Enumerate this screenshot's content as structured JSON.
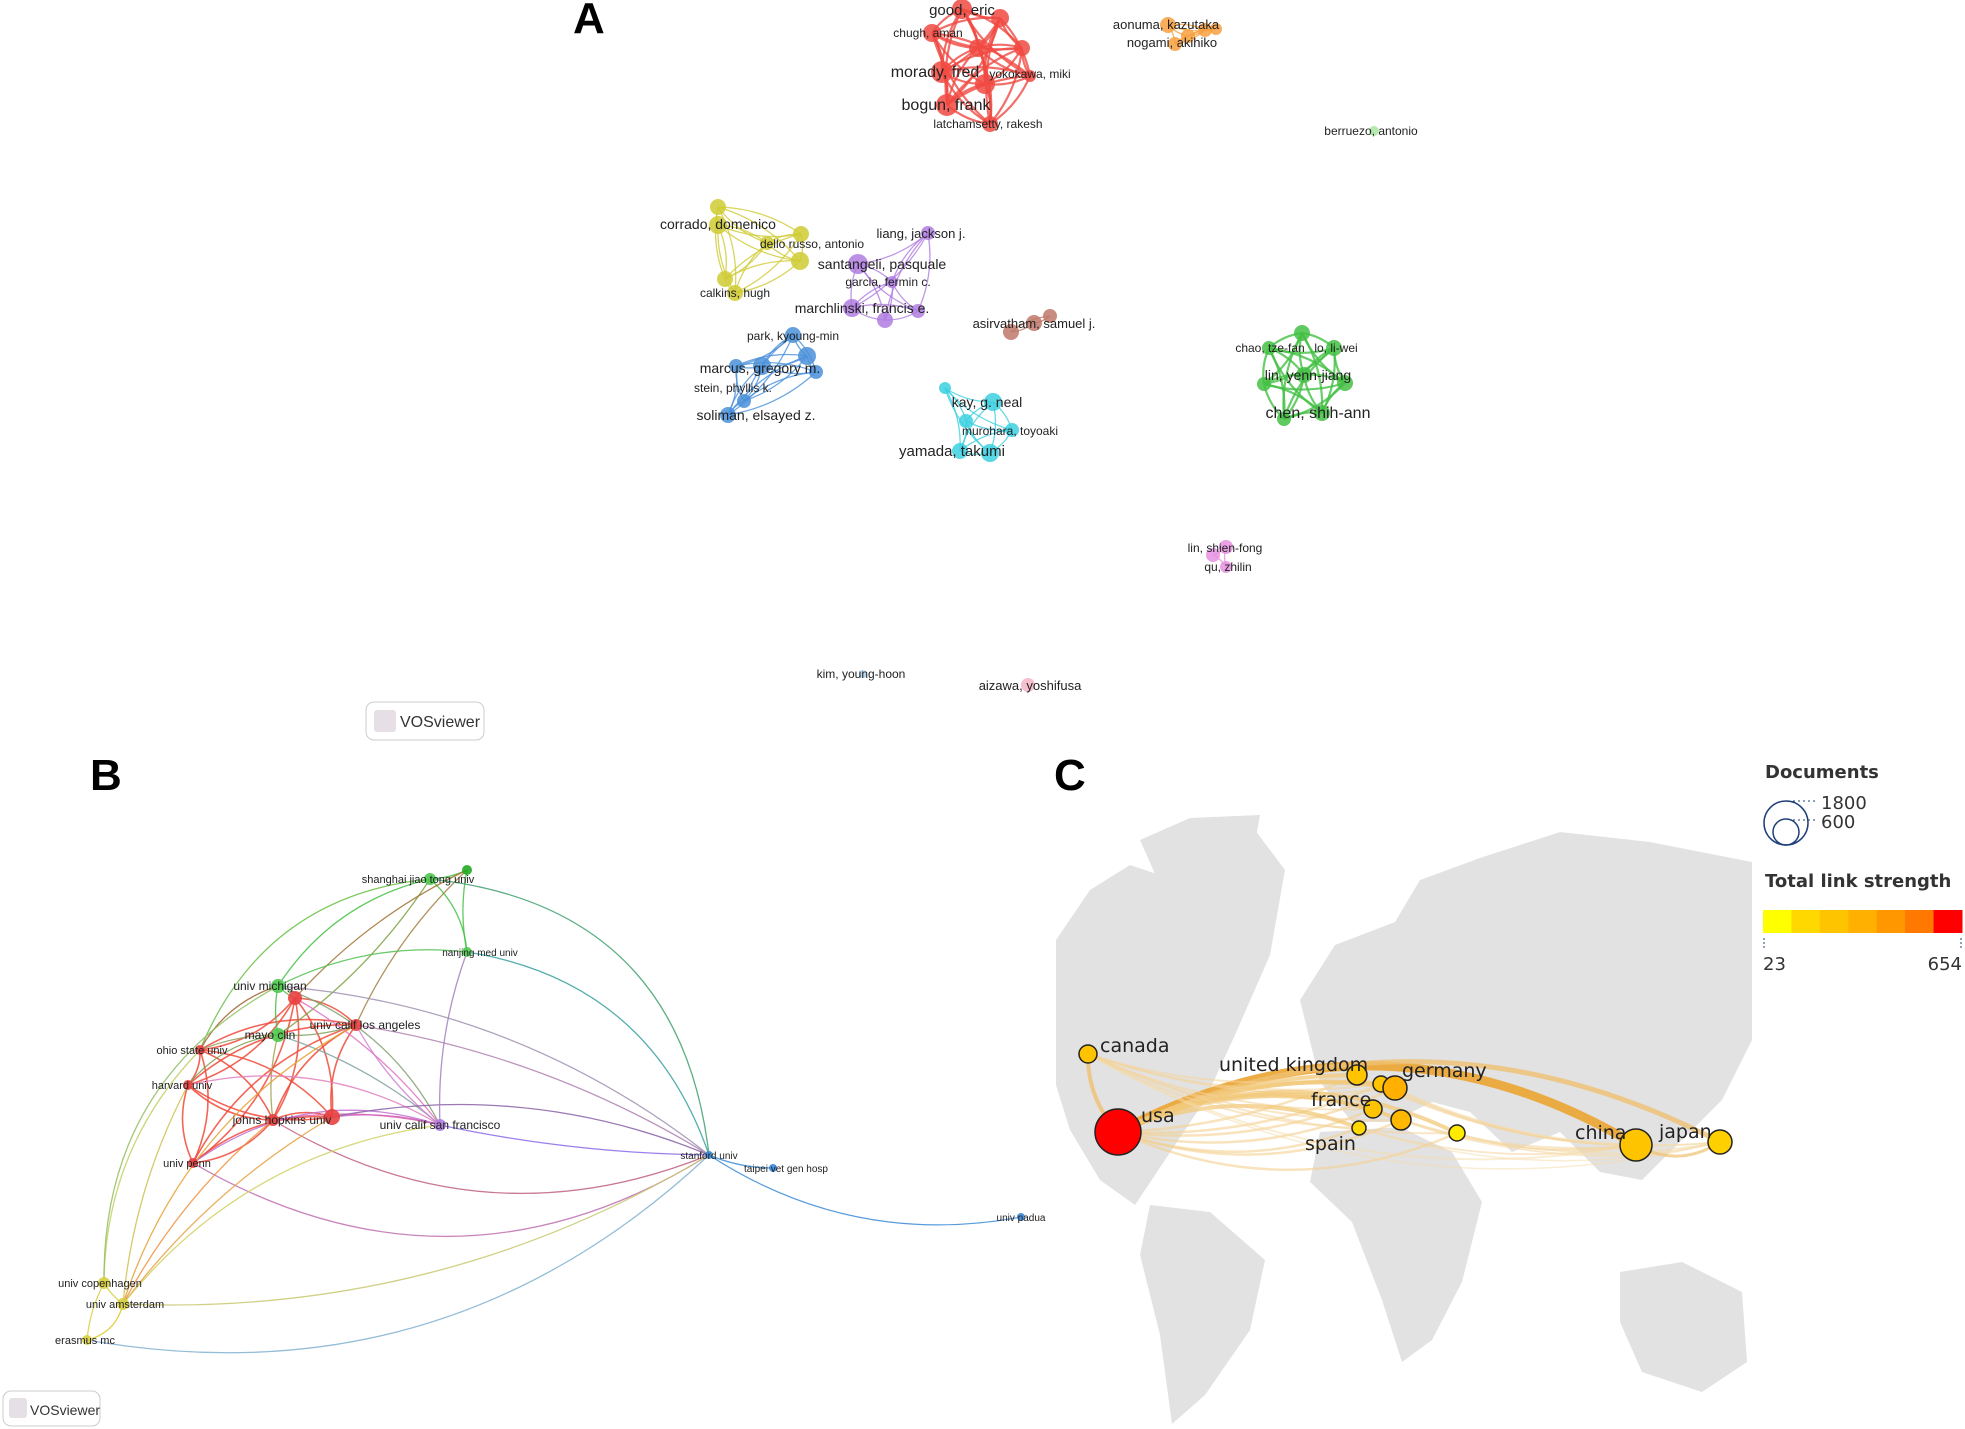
{
  "panels": {
    "a": "A",
    "b": "B",
    "c": "C"
  },
  "watermark": "VOSviewer",
  "authors": {
    "good_eric": "good, eric",
    "chugh_aman": "chugh, aman",
    "morady_fred": "morady, fred",
    "yokokawa_miki": "yokokawa, miki",
    "bogun_frank": "bogun, frank",
    "latchamsetty_rakesh": "latchamsetty, rakesh",
    "aonuma_kazutaka": "aonuma, kazutaka",
    "nogami_akihiko": "nogami, akihiko",
    "berruezo_antonio": "berruezo, antonio",
    "corrado_domenico": "corrado, domenico",
    "dello_russo_antonio": "dello russo, antonio",
    "calkins_hugh": "calkins, hugh",
    "liang_jackson": "liang, jackson j.",
    "santangeli_pasquale": "santangeli, pasquale",
    "garcia_fermin": "garcia, fermin c.",
    "marchlinski_francis": "marchlinski, francis e.",
    "park_kyoung_min": "park, kyoung-min",
    "marcus_gregory": "marcus, gregory m.",
    "stein_phyllis": "stein, phyllis k.",
    "soliman_elsayed": "soliman, elsayed z.",
    "asirvatham_samuel": "asirvatham, samuel j.",
    "kay_neal": "kay, g. neal",
    "murohara_toyoaki": "murohara, toyoaki",
    "yamada_takumi": "yamada, takumi",
    "chao_tze_fan": "chao, tze-fan",
    "lo_li_wei": "lo, li-wei",
    "lin_yenn_jiang": "lin, yenn-jiang",
    "chen_shih_ann": "chen, shih-ann",
    "lin_shien_fong": "lin, shien-fong",
    "qu_zhilin": "qu, zhilin",
    "kim_young_hoon": "kim, young-hoon",
    "aizawa_yoshifusa": "aizawa, yoshifusa"
  },
  "institutions": {
    "shanghai_jiao_tong": "shanghai jiao tong univ",
    "nanjing_med": "nanjing med univ",
    "univ_michigan": "univ michigan",
    "mayo_clin": "mayo clin",
    "ucla": "univ calif los angeles",
    "ohio_state": "ohio state univ",
    "harvard": "harvard univ",
    "johns_hopkins": "johns hopkins univ",
    "ucsf": "univ calif san francisco",
    "univ_penn": "univ penn",
    "stanford": "stanford univ",
    "taipei_vet_gen": "taipei vet gen hosp",
    "univ_padua": "univ padua",
    "univ_copenhagen": "univ copenhagen",
    "univ_amsterdam": "univ amsterdam",
    "erasmus_mc": "erasmus mc"
  },
  "countries": {
    "canada": "canada",
    "usa": "usa",
    "united_kingdom": "united kingdom",
    "germany": "germany",
    "france": "france",
    "spain": "spain",
    "china": "china",
    "japan": "japan"
  },
  "legend": {
    "documents_title": "Documents",
    "size_large": "1800",
    "size_small": "600",
    "strength_title": "Total link strength",
    "strength_min": "23",
    "strength_max": "654",
    "scale_colors": [
      "#ffff00",
      "#ffd800",
      "#ffc400",
      "#ffb000",
      "#ff9800",
      "#ff7800",
      "#ff0000"
    ]
  }
}
